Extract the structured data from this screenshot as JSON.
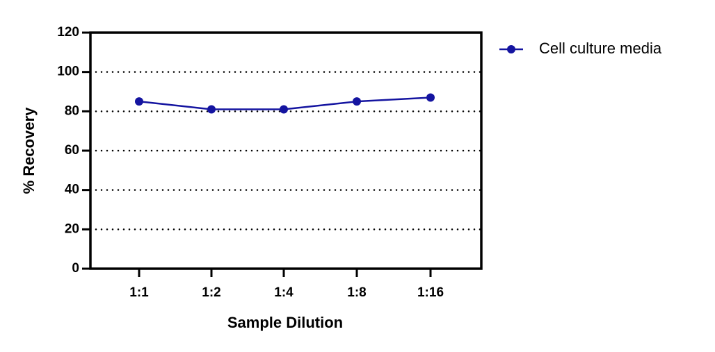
{
  "chart_data": {
    "type": "line",
    "x_label": "Sample Dilution",
    "y_label": "% Recovery",
    "categories": [
      "1:1",
      "1:2",
      "1:4",
      "1:8",
      "1:16"
    ],
    "series": [
      {
        "name": "Cell culture media",
        "color": "#1414a0",
        "values": [
          85,
          81,
          81,
          85,
          87
        ]
      }
    ],
    "ylim": [
      0,
      120
    ],
    "yticks": [
      0,
      20,
      40,
      60,
      80,
      100,
      120
    ],
    "grid": true,
    "legend": "outside-right"
  }
}
